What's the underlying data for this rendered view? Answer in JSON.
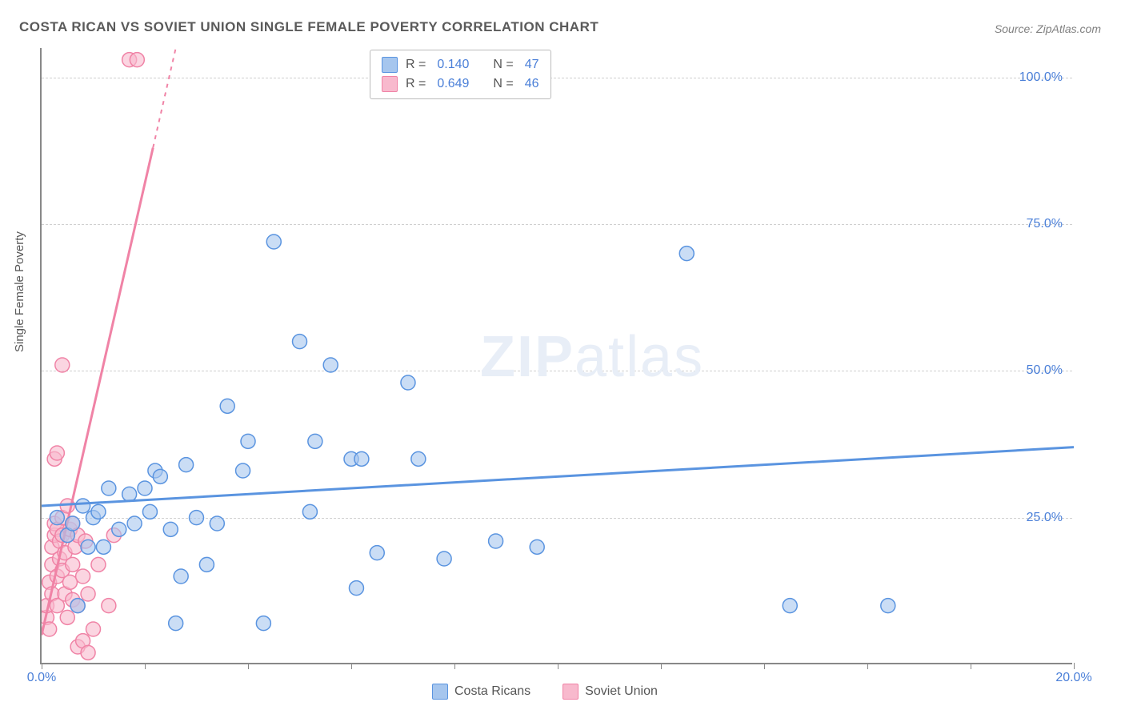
{
  "title": "COSTA RICAN VS SOVIET UNION SINGLE FEMALE POVERTY CORRELATION CHART",
  "source": "Source: ZipAtlas.com",
  "y_axis_title": "Single Female Poverty",
  "watermark": {
    "zip": "ZIP",
    "atlas": "atlas"
  },
  "chart": {
    "type": "scatter",
    "xlim": [
      0,
      20
    ],
    "ylim": [
      0,
      105
    ],
    "x_tick_step": 2,
    "x_tick_labels_at": [
      0,
      20
    ],
    "y_ticks": [
      25,
      50,
      75,
      100
    ],
    "background_color": "#ffffff",
    "grid_color": "#d0d0d0",
    "axis_color": "#888888",
    "label_color": "#4a7fd8",
    "title_color": "#5a5a5a",
    "title_fontsize": 17,
    "label_fontsize": 16,
    "marker_radius": 9,
    "marker_stroke_width": 1.5,
    "marker_fill_opacity": 0.25,
    "trend_line_width": 3,
    "series": [
      {
        "name": "Costa Ricans",
        "color": "#5a94e0",
        "fill": "#a6c6ee",
        "r_value": "0.140",
        "n_value": "47",
        "trend": {
          "x1": 0,
          "y1": 27,
          "x2": 20,
          "y2": 37
        },
        "points": [
          [
            0.3,
            25
          ],
          [
            0.5,
            22
          ],
          [
            0.6,
            24
          ],
          [
            0.7,
            10
          ],
          [
            0.8,
            27
          ],
          [
            0.9,
            20
          ],
          [
            1.0,
            25
          ],
          [
            1.1,
            26
          ],
          [
            1.2,
            20
          ],
          [
            1.3,
            30
          ],
          [
            1.5,
            23
          ],
          [
            1.7,
            29
          ],
          [
            1.8,
            24
          ],
          [
            2.0,
            30
          ],
          [
            2.1,
            26
          ],
          [
            2.2,
            33
          ],
          [
            2.3,
            32
          ],
          [
            2.5,
            23
          ],
          [
            2.6,
            7
          ],
          [
            2.7,
            15
          ],
          [
            2.8,
            34
          ],
          [
            3.0,
            25
          ],
          [
            3.2,
            17
          ],
          [
            3.4,
            24
          ],
          [
            3.6,
            44
          ],
          [
            3.9,
            33
          ],
          [
            4.0,
            38
          ],
          [
            4.3,
            7
          ],
          [
            4.5,
            72
          ],
          [
            5.0,
            55
          ],
          [
            5.2,
            26
          ],
          [
            5.3,
            38
          ],
          [
            5.6,
            51
          ],
          [
            6.0,
            35
          ],
          [
            6.1,
            13
          ],
          [
            6.2,
            35
          ],
          [
            6.5,
            19
          ],
          [
            7.1,
            48
          ],
          [
            7.3,
            35
          ],
          [
            7.8,
            18
          ],
          [
            8.8,
            21
          ],
          [
            9.6,
            20
          ],
          [
            12.5,
            70
          ],
          [
            14.5,
            10
          ],
          [
            16.4,
            10
          ]
        ]
      },
      {
        "name": "Soviet Union",
        "color": "#f083a6",
        "fill": "#f8b9cd",
        "r_value": "0.649",
        "n_value": "46",
        "trend": {
          "x1": 0,
          "y1": 5,
          "x2": 2.6,
          "y2": 105
        },
        "trend_dash_after_y": 88,
        "points": [
          [
            0.1,
            8
          ],
          [
            0.1,
            10
          ],
          [
            0.15,
            6
          ],
          [
            0.15,
            14
          ],
          [
            0.2,
            12
          ],
          [
            0.2,
            17
          ],
          [
            0.2,
            20
          ],
          [
            0.25,
            22
          ],
          [
            0.25,
            24
          ],
          [
            0.25,
            35
          ],
          [
            0.3,
            10
          ],
          [
            0.3,
            15
          ],
          [
            0.3,
            23
          ],
          [
            0.3,
            36
          ],
          [
            0.35,
            18
          ],
          [
            0.35,
            21
          ],
          [
            0.4,
            16
          ],
          [
            0.4,
            22
          ],
          [
            0.4,
            25
          ],
          [
            0.4,
            51
          ],
          [
            0.45,
            12
          ],
          [
            0.45,
            19
          ],
          [
            0.5,
            8
          ],
          [
            0.5,
            22
          ],
          [
            0.5,
            27
          ],
          [
            0.55,
            14
          ],
          [
            0.55,
            23
          ],
          [
            0.6,
            11
          ],
          [
            0.6,
            17
          ],
          [
            0.6,
            24
          ],
          [
            0.65,
            20
          ],
          [
            0.7,
            3
          ],
          [
            0.7,
            10
          ],
          [
            0.7,
            22
          ],
          [
            0.8,
            4
          ],
          [
            0.8,
            15
          ],
          [
            0.85,
            21
          ],
          [
            0.9,
            2
          ],
          [
            0.9,
            12
          ],
          [
            1.0,
            6
          ],
          [
            1.1,
            17
          ],
          [
            1.3,
            10
          ],
          [
            1.4,
            22
          ],
          [
            1.7,
            103
          ],
          [
            1.85,
            103
          ]
        ]
      }
    ]
  },
  "legend_top": {
    "r_label": "R =",
    "n_label": "N ="
  }
}
